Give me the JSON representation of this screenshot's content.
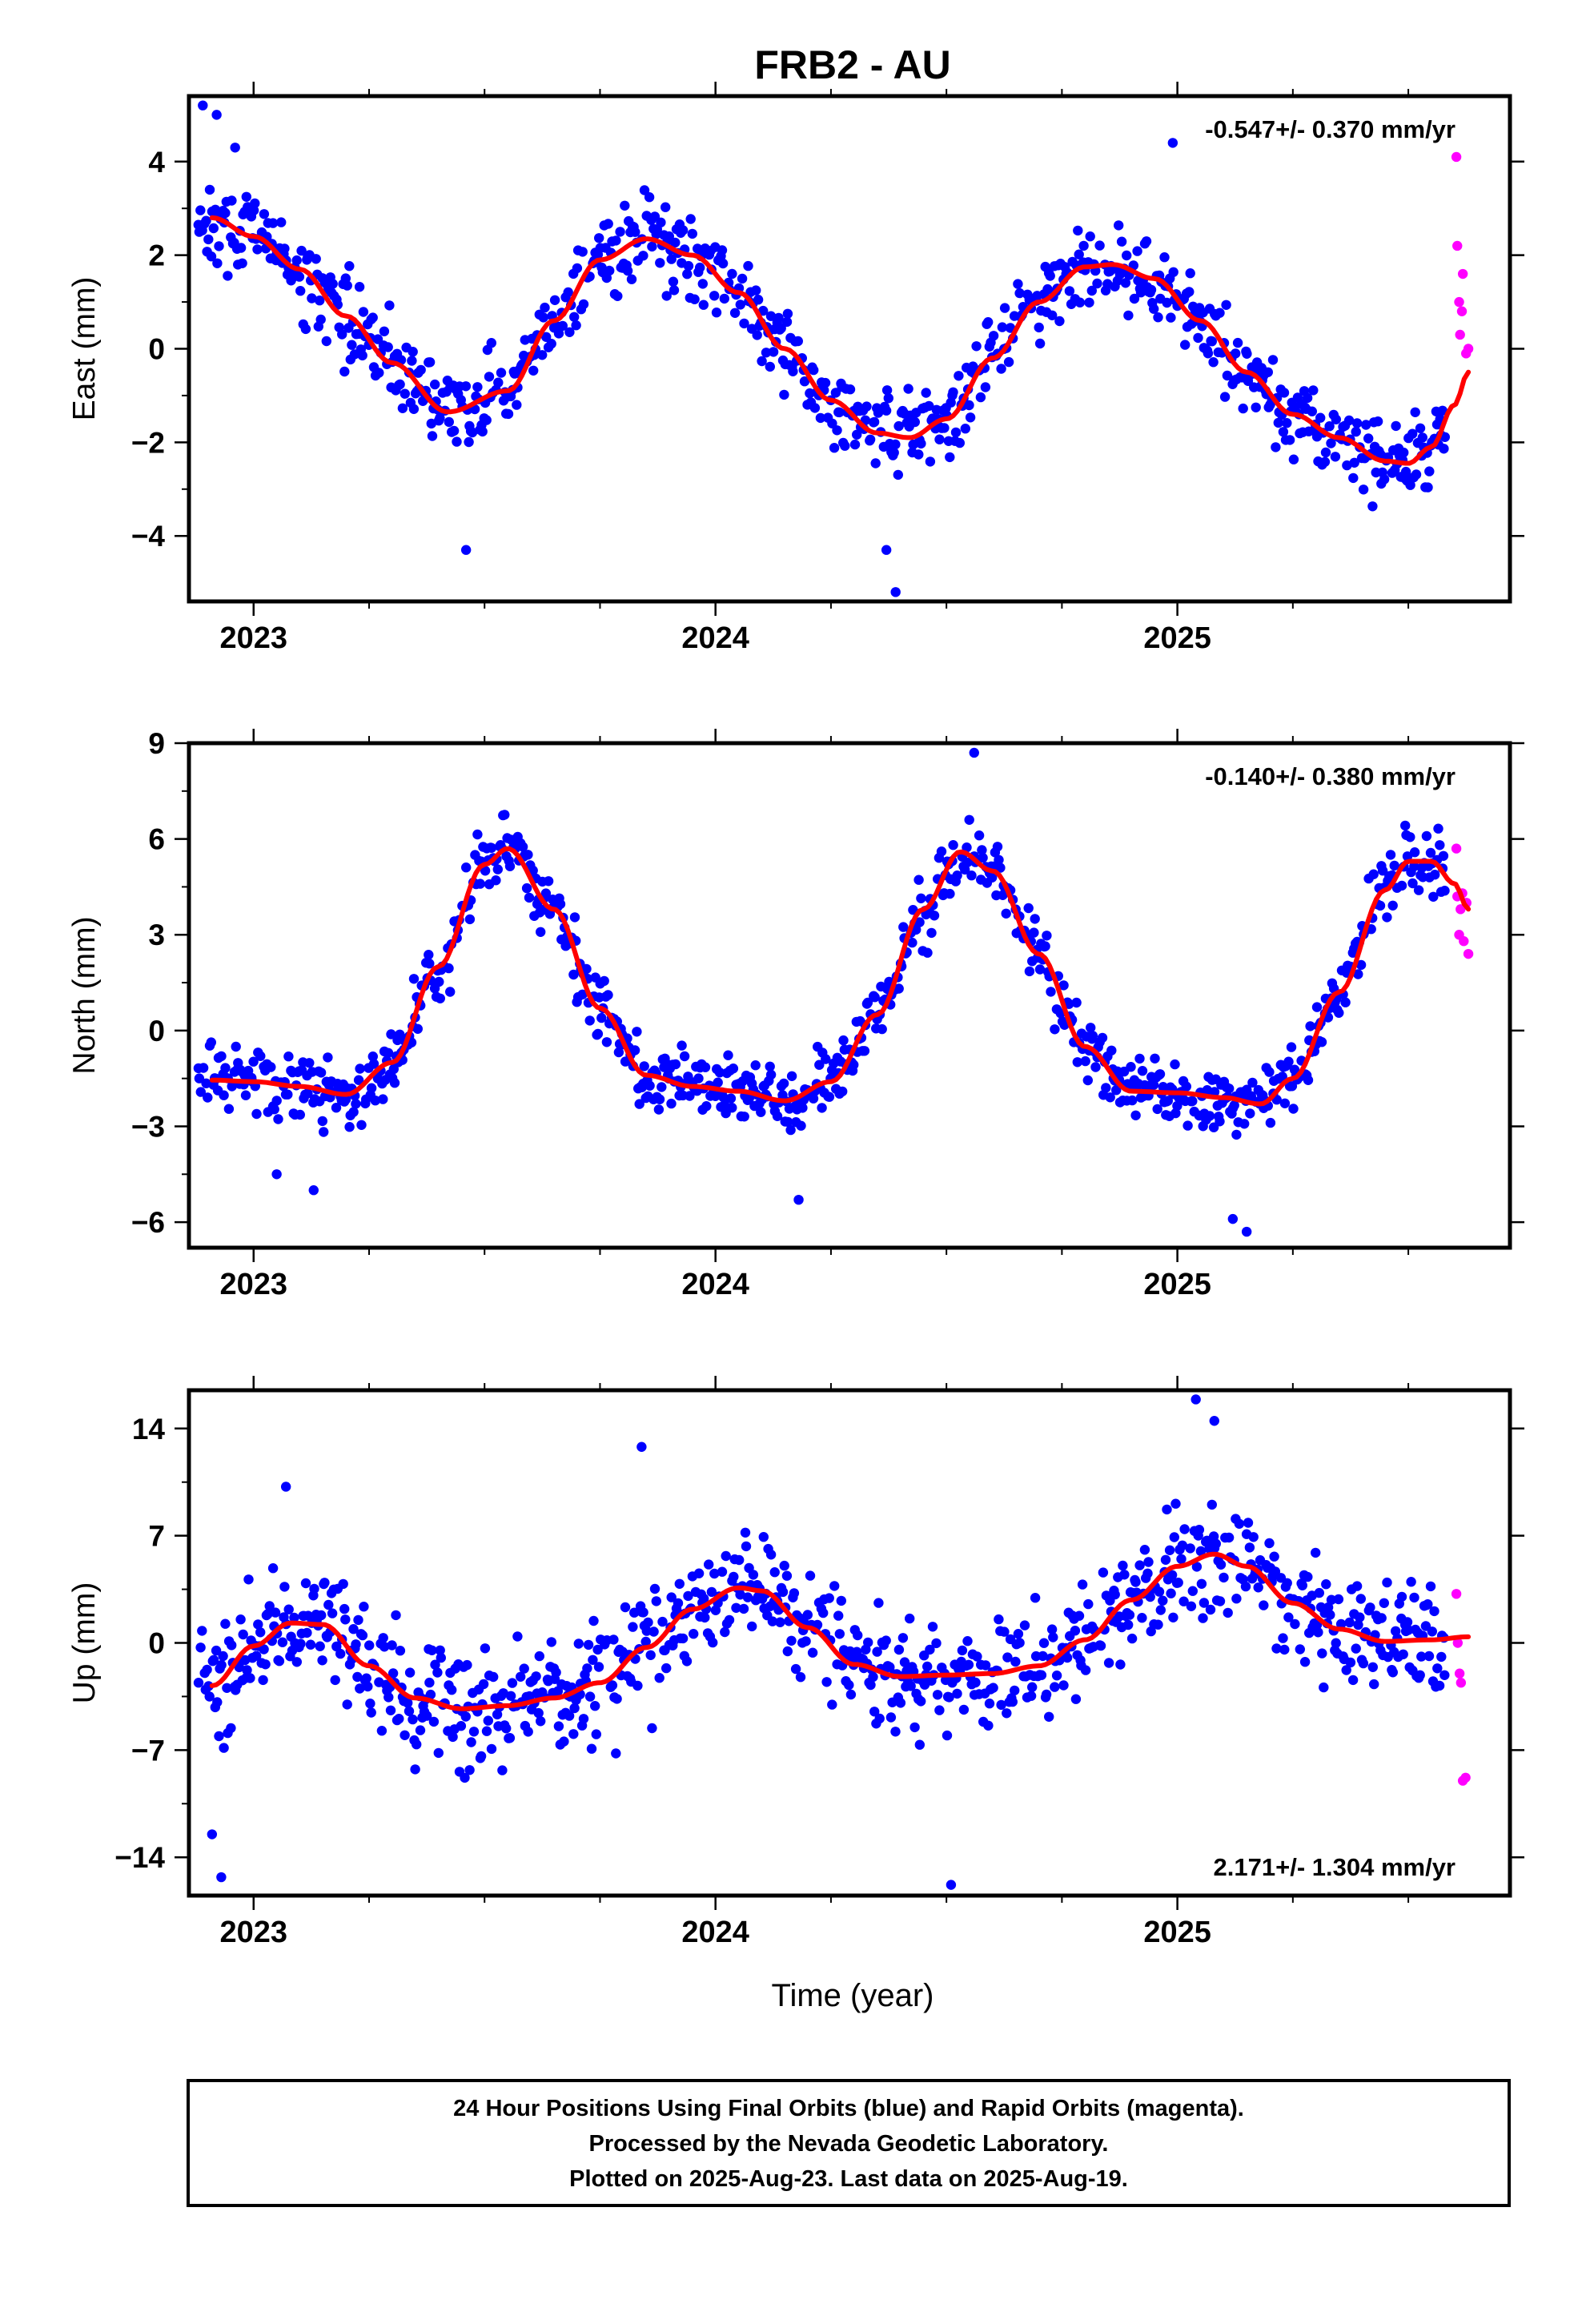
{
  "title": "FRB2 - AU",
  "footer": {
    "lines": [
      "24 Hour Positions Using Final Orbits (blue) and Rapid Orbits (magenta).",
      "Processed by the Nevada Geodetic Laboratory.",
      "Plotted on 2025-Aug-23. Last data on 2025-Aug-19."
    ]
  },
  "colors": {
    "final_points": "#0000ff",
    "rapid_points": "#ff00ff",
    "fit_line": "#ff0000",
    "frame": "#000000"
  },
  "xlabel": "Time (year)",
  "chart_data": [
    {
      "type": "scatter",
      "name": "east",
      "ylabel": "East (mm)",
      "rate_text": "-0.547+/- 0.370 mm/yr",
      "xlim": [
        2022.86,
        2025.72
      ],
      "ylim": [
        -5.4,
        5.4
      ],
      "x_ticks": [
        2023,
        2024,
        2025
      ],
      "x_tick_labels": [
        "2023",
        "2024",
        "2025"
      ],
      "y_ticks": [
        -4,
        -2,
        0,
        2,
        4
      ],
      "y_tick_labels": [
        "−4",
        "−2",
        "0",
        "2",
        "4"
      ],
      "fit_curve": {
        "x": [
          2022.91,
          2023.0,
          2023.1,
          2023.2,
          2023.3,
          2023.42,
          2023.55,
          2023.65,
          2023.75,
          2023.85,
          2023.95,
          2024.05,
          2024.15,
          2024.25,
          2024.35,
          2024.42,
          2024.5,
          2024.6,
          2024.7,
          2024.8,
          2024.86,
          2024.95,
          2025.05,
          2025.15,
          2025.25,
          2025.35,
          2025.45,
          2025.5,
          2025.55,
          2025.6,
          2025.63
        ],
        "y": [
          2.8,
          2.4,
          1.7,
          0.7,
          -0.3,
          -1.35,
          -0.9,
          0.6,
          1.9,
          2.35,
          2.0,
          1.2,
          0.0,
          -1.1,
          -1.8,
          -1.9,
          -1.5,
          -0.2,
          1.0,
          1.75,
          1.8,
          1.5,
          0.6,
          -0.5,
          -1.4,
          -1.9,
          -2.4,
          -2.45,
          -2.1,
          -1.2,
          -0.5
        ]
      },
      "anchors": {
        "x": [
          2022.9,
          2023.0,
          2023.1,
          2023.2,
          2023.3,
          2023.42,
          2023.55,
          2023.65,
          2023.75,
          2023.85,
          2023.95,
          2024.05,
          2024.15,
          2024.25,
          2024.35,
          2024.42,
          2024.5,
          2024.6,
          2024.7,
          2024.8,
          2024.86,
          2024.95,
          2025.05,
          2025.15,
          2025.25,
          2025.35,
          2025.45,
          2025.5,
          2025.55,
          2025.6
        ],
        "y": [
          2.8,
          2.4,
          1.7,
          0.7,
          -0.3,
          -1.35,
          -0.9,
          0.6,
          1.9,
          2.35,
          2.0,
          1.2,
          0.0,
          -1.1,
          -1.8,
          -1.9,
          -1.5,
          -0.2,
          1.0,
          1.75,
          1.8,
          1.5,
          0.6,
          -0.5,
          -1.4,
          -1.9,
          -2.4,
          -2.45,
          -2.1,
          -1.2
        ]
      },
      "scatter": {
        "start": 2022.88,
        "end": 2025.58,
        "step": 0.0028,
        "noise": 0.85,
        "seed": 17
      },
      "outliers": {
        "x": [
          2022.89,
          2022.92,
          2022.96,
          2023.46,
          2024.39,
          2024.37,
          2024.99
        ],
        "y": [
          5.2,
          5.0,
          4.3,
          -4.3,
          -5.2,
          -4.3,
          4.4
        ]
      },
      "rapid": {
        "x": [
          2025.604,
          2025.606,
          2025.61,
          2025.612,
          2025.616,
          2025.618,
          2025.625,
          2025.63
        ],
        "y": [
          4.1,
          2.2,
          1.0,
          0.3,
          0.8,
          1.6,
          -0.1,
          0.0
        ]
      }
    },
    {
      "type": "scatter",
      "name": "north",
      "ylabel": "North (mm)",
      "rate_text": "-0.140+/- 0.380 mm/yr",
      "xlim": [
        2022.86,
        2025.72
      ],
      "ylim": [
        -6.8,
        9.0
      ],
      "x_ticks": [
        2023,
        2024,
        2025
      ],
      "x_tick_labels": [
        "2023",
        "2024",
        "2025"
      ],
      "y_ticks": [
        -6,
        -3,
        0,
        3,
        6,
        9
      ],
      "y_tick_labels": [
        "−6",
        "−3",
        "0",
        "3",
        "6",
        "9"
      ],
      "fit_curve": {
        "x": [
          2022.91,
          2023.0,
          2023.1,
          2023.2,
          2023.3,
          2023.4,
          2023.5,
          2023.55,
          2023.65,
          2023.75,
          2023.85,
          2023.95,
          2024.05,
          2024.15,
          2024.25,
          2024.35,
          2024.45,
          2024.53,
          2024.6,
          2024.7,
          2024.8,
          2024.9,
          2025.0,
          2025.1,
          2025.18,
          2025.25,
          2025.35,
          2025.45,
          2025.5,
          2025.55,
          2025.6,
          2025.63
        ],
        "y": [
          -1.55,
          -1.6,
          -1.75,
          -2.0,
          -1.0,
          2.0,
          5.2,
          5.7,
          3.8,
          0.7,
          -1.4,
          -1.75,
          -1.9,
          -2.2,
          -1.6,
          0.5,
          3.8,
          5.6,
          5.0,
          2.4,
          -0.5,
          -1.9,
          -1.95,
          -2.1,
          -2.3,
          -1.5,
          1.2,
          4.4,
          5.3,
          5.3,
          4.6,
          3.8
        ]
      },
      "anchors": {
        "x": [
          2022.9,
          2023.0,
          2023.1,
          2023.2,
          2023.3,
          2023.4,
          2023.5,
          2023.55,
          2023.65,
          2023.75,
          2023.85,
          2023.95,
          2024.05,
          2024.15,
          2024.25,
          2024.35,
          2024.45,
          2024.53,
          2024.6,
          2024.7,
          2024.8,
          2024.9,
          2025.0,
          2025.1,
          2025.18,
          2025.25,
          2025.35,
          2025.45,
          2025.5,
          2025.55,
          2025.6
        ],
        "y": [
          -1.55,
          -1.6,
          -1.75,
          -2.0,
          -1.0,
          2.0,
          5.2,
          5.7,
          3.8,
          0.7,
          -1.4,
          -1.75,
          -1.9,
          -2.2,
          -1.6,
          0.5,
          3.8,
          5.6,
          5.0,
          2.4,
          -0.5,
          -1.9,
          -1.95,
          -2.1,
          -2.3,
          -1.5,
          1.2,
          4.4,
          5.3,
          5.3,
          4.6
        ]
      },
      "scatter": {
        "start": 2022.88,
        "end": 2025.58,
        "step": 0.0028,
        "noise": 0.95,
        "seed": 29
      },
      "outliers": {
        "x": [
          2024.56,
          2025.15,
          2025.12,
          2023.05,
          2023.13,
          2024.18
        ],
        "y": [
          8.7,
          -6.3,
          -5.9,
          -4.5,
          -5.0,
          -5.3
        ]
      },
      "rapid": {
        "x": [
          2025.604,
          2025.606,
          2025.61,
          2025.613,
          2025.617,
          2025.62,
          2025.626,
          2025.63
        ],
        "y": [
          5.7,
          4.2,
          3.0,
          3.8,
          4.3,
          2.8,
          4.0,
          2.4
        ]
      }
    },
    {
      "type": "scatter",
      "name": "up",
      "ylabel": "Up (mm)",
      "rate_text": "2.171+/- 1.304 mm/yr",
      "xlim": [
        2022.86,
        2025.72
      ],
      "ylim": [
        -16.5,
        16.5
      ],
      "x_ticks": [
        2023,
        2024,
        2025
      ],
      "x_tick_labels": [
        "2023",
        "2024",
        "2025"
      ],
      "y_ticks": [
        -14,
        -7,
        0,
        7,
        14
      ],
      "y_tick_labels": [
        "−14",
        "−7",
        "0",
        "7",
        "14"
      ],
      "fit_curve": {
        "x": [
          2022.91,
          2023.0,
          2023.08,
          2023.15,
          2023.25,
          2023.35,
          2023.45,
          2023.55,
          2023.65,
          2023.75,
          2023.85,
          2023.95,
          2024.05,
          2024.1,
          2024.2,
          2024.3,
          2024.4,
          2024.5,
          2024.6,
          2024.7,
          2024.8,
          2024.9,
          2025.0,
          2025.08,
          2025.15,
          2025.25,
          2025.35,
          2025.45,
          2025.55,
          2025.63
        ],
        "y": [
          -2.8,
          -0.2,
          1.3,
          1.2,
          -1.5,
          -3.6,
          -4.3,
          -4.1,
          -3.6,
          -2.6,
          -0.3,
          2.2,
          3.6,
          3.4,
          1.0,
          -1.4,
          -2.2,
          -2.1,
          -2.0,
          -1.5,
          0.2,
          2.8,
          5.0,
          5.8,
          5.0,
          2.6,
          0.9,
          0.1,
          0.2,
          0.4
        ]
      },
      "anchors": {
        "x": [
          2022.9,
          2023.0,
          2023.08,
          2023.15,
          2023.25,
          2023.35,
          2023.45,
          2023.55,
          2023.65,
          2023.75,
          2023.85,
          2023.95,
          2024.05,
          2024.1,
          2024.2,
          2024.3,
          2024.4,
          2024.5,
          2024.6,
          2024.7,
          2024.8,
          2024.9,
          2025.0,
          2025.08,
          2025.15,
          2025.25,
          2025.35,
          2025.45,
          2025.55,
          2025.6
        ],
        "y": [
          -2.8,
          -0.2,
          1.3,
          1.2,
          -1.5,
          -3.6,
          -4.3,
          -4.1,
          -3.6,
          -2.6,
          -0.3,
          2.2,
          3.6,
          3.4,
          1.0,
          -1.4,
          -2.2,
          -2.1,
          -2.0,
          -1.5,
          0.2,
          2.8,
          5.0,
          5.8,
          5.0,
          2.6,
          0.9,
          0.1,
          0.2,
          0.3
        ]
      },
      "scatter": {
        "start": 2022.88,
        "end": 2025.58,
        "step": 0.0028,
        "noise": 3.4,
        "seed": 41
      },
      "outliers": {
        "x": [
          2022.93,
          2022.91,
          2024.51,
          2025.04,
          2025.08,
          2023.84,
          2023.07
        ],
        "y": [
          -15.3,
          -12.5,
          -15.8,
          15.9,
          14.5,
          12.8,
          10.2
        ]
      },
      "rapid": {
        "x": [
          2025.604,
          2025.607,
          2025.611,
          2025.614,
          2025.618,
          2025.624
        ],
        "y": [
          3.2,
          0.0,
          -2.0,
          -2.6,
          -9.0,
          -8.8
        ]
      }
    }
  ]
}
